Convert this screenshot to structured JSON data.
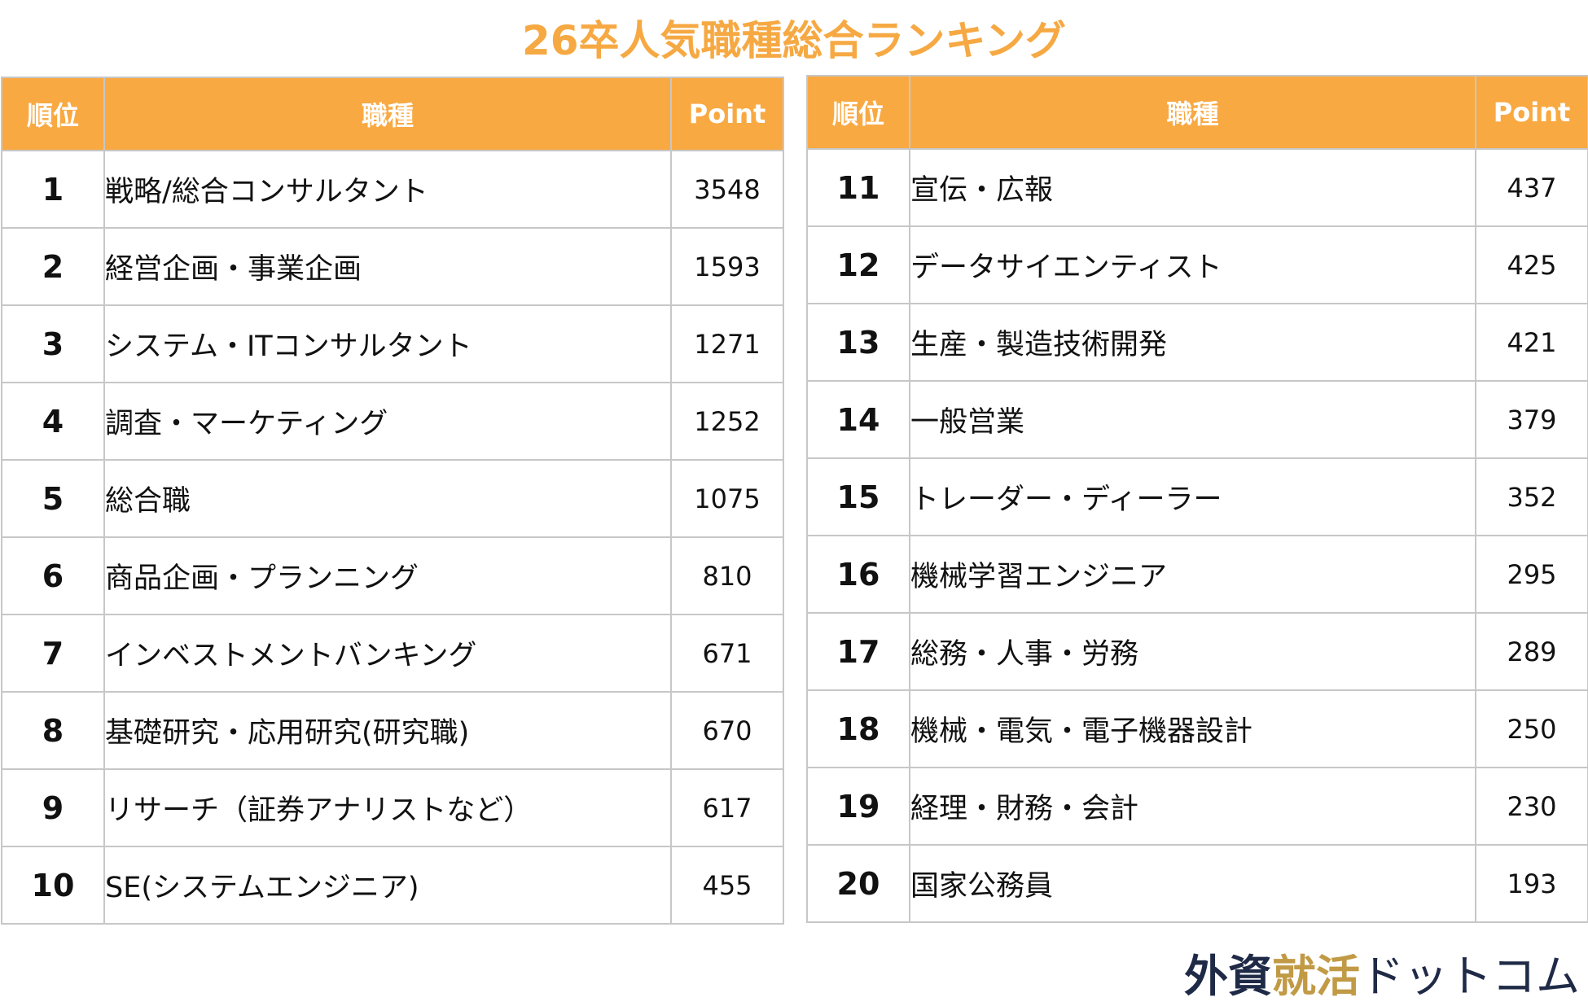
{
  "chart_data": {
    "type": "table",
    "title": "26卒人気職種総合ランキング",
    "columns": [
      "順位",
      "職種",
      "Point"
    ],
    "rows": [
      {
        "rank": "1",
        "job": "戦略/総合コンサルタント",
        "point": "3548"
      },
      {
        "rank": "2",
        "job": "経営企画・事業企画",
        "point": "1593"
      },
      {
        "rank": "3",
        "job": "システム・ITコンサルタント",
        "point": "1271"
      },
      {
        "rank": "4",
        "job": "調査・マーケティング",
        "point": "1252"
      },
      {
        "rank": "5",
        "job": "総合職",
        "point": "1075"
      },
      {
        "rank": "6",
        "job": "商品企画・プランニング",
        "point": "810"
      },
      {
        "rank": "7",
        "job": "インベストメントバンキング",
        "point": "671"
      },
      {
        "rank": "8",
        "job": "基礎研究・応用研究(研究職)",
        "point": "670"
      },
      {
        "rank": "9",
        "job": "リサーチ（証券アナリストなど）",
        "point": "617"
      },
      {
        "rank": "10",
        "job": "SE(システムエンジニア)",
        "point": "455"
      },
      {
        "rank": "11",
        "job": "宣伝・広報",
        "point": "437"
      },
      {
        "rank": "12",
        "job": "データサイエンティスト",
        "point": "425"
      },
      {
        "rank": "13",
        "job": "生産・製造技術開発",
        "point": "421"
      },
      {
        "rank": "14",
        "job": "一般営業",
        "point": "379"
      },
      {
        "rank": "15",
        "job": "トレーダー・ディーラー",
        "point": "352"
      },
      {
        "rank": "16",
        "job": "機械学習エンジニア",
        "point": "295"
      },
      {
        "rank": "17",
        "job": "総務・人事・労務",
        "point": "289"
      },
      {
        "rank": "18",
        "job": "機械・電気・電子機器設計",
        "point": "250"
      },
      {
        "rank": "19",
        "job": "経理・財務・会計",
        "point": "230"
      },
      {
        "rank": "20",
        "job": "国家公務員",
        "point": "193"
      }
    ]
  },
  "logo": {
    "part1": "外資",
    "part2": "就活",
    "part3": "ドットコム"
  },
  "colors": {
    "header_bg": "#f9a942",
    "header_text": "#ffffff",
    "title": "#f6a943",
    "rank_text": "#f3a03c",
    "border": "#c7c7c7",
    "logo_navy": "#1f2a47",
    "logo_gold": "#c19a45"
  }
}
